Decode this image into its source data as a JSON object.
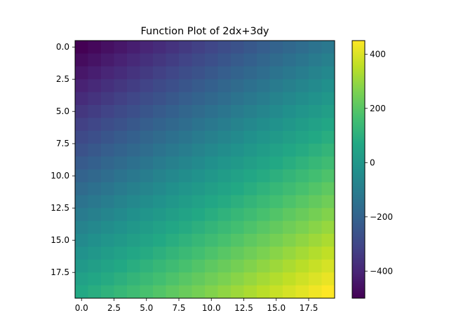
{
  "chart_data": {
    "type": "heatmap",
    "title": "Function Plot of 2dx+3dy",
    "xlabel": "",
    "ylabel": "",
    "formula": "2dx+3dy",
    "grid": false,
    "nx": 20,
    "ny": 20,
    "x_ticks": [
      0.0,
      2.5,
      5.0,
      7.5,
      10.0,
      12.5,
      15.0,
      17.5
    ],
    "x_tick_labels": [
      "0.0",
      "2.5",
      "5.0",
      "7.5",
      "10.0",
      "12.5",
      "15.0",
      "17.5"
    ],
    "y_ticks": [
      0.0,
      2.5,
      5.0,
      7.5,
      10.0,
      12.5,
      15.0,
      17.5
    ],
    "y_tick_labels": [
      "0.0",
      "2.5",
      "5.0",
      "7.5",
      "10.0",
      "12.5",
      "15.0",
      "17.5"
    ],
    "xlim": [
      -0.5,
      19.5
    ],
    "ylim": [
      19.5,
      -0.5
    ],
    "colormap": "viridis",
    "colorbar": {
      "vmin": -500,
      "vmax": 450,
      "ticks": [
        -400,
        -200,
        0,
        200,
        400
      ],
      "tick_labels": [
        "−400",
        "−200",
        "0",
        "200",
        "400"
      ]
    },
    "value_range": [
      -500,
      450
    ]
  }
}
